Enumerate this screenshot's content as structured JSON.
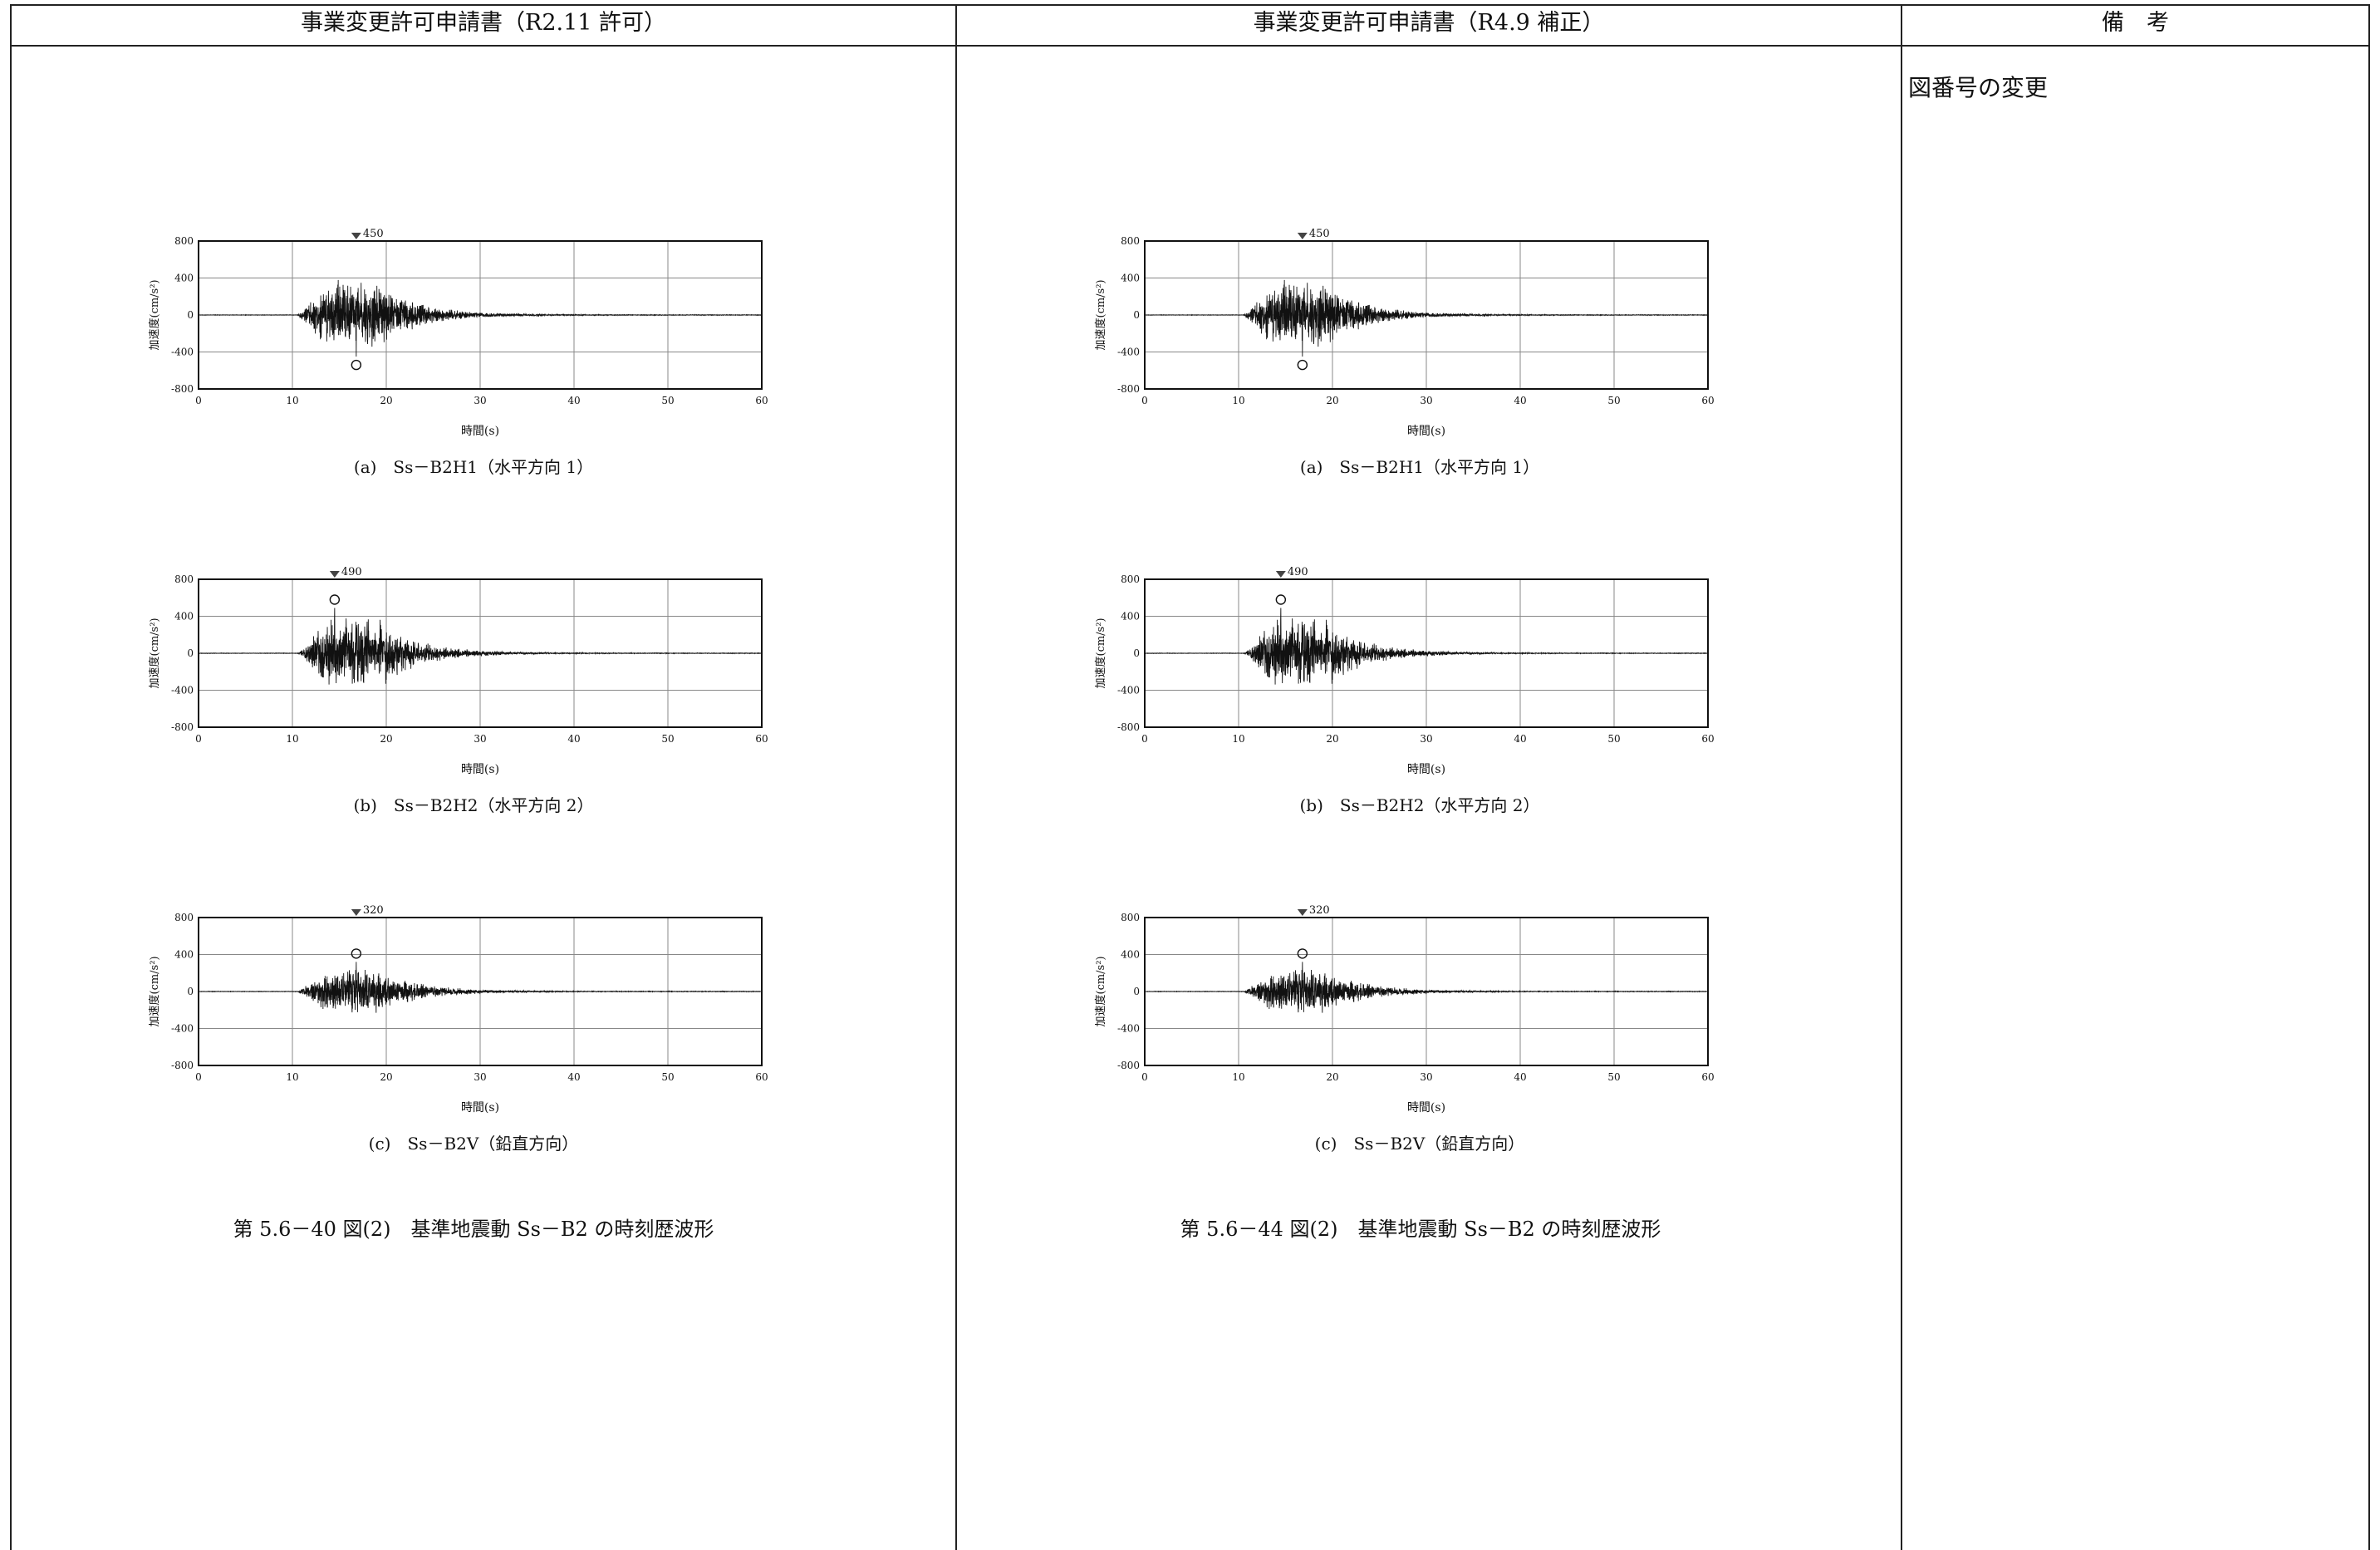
{
  "headers": {
    "col1": "事業変更許可申請書（R2.11 許可）",
    "col2": "事業変更許可申請書（R4.9 補正）",
    "col3": "備　考"
  },
  "remark": "図番号の変更",
  "left_figure_caption": "第 5.6－40 図(2)　基準地震動 Ss－B2 の時刻歴波形",
  "right_figure_caption": "第 5.6－44 図(2)　基準地震動 Ss－B2 の時刻歴波形",
  "chart_common": {
    "ylabel": "加速度(cm/s²)",
    "xlabel": "時間(s)",
    "xticks": [
      "0",
      "10",
      "20",
      "30",
      "40",
      "50",
      "60"
    ],
    "yticks": [
      "800",
      "400",
      "0",
      "-400",
      "-800"
    ]
  },
  "chart_data": [
    {
      "type": "line",
      "caption": "(a)　Ss－B2H1（水平方向 1）",
      "peak_label": "450",
      "peak_time": 16.8,
      "peak_value": -450,
      "xlim": [
        0,
        60
      ],
      "ylim": [
        -800,
        800
      ],
      "xlabel": "時間(s)",
      "ylabel": "加速度(cm/s²)"
    },
    {
      "type": "line",
      "caption": "(b)　Ss－B2H2（水平方向 2）",
      "peak_label": "490",
      "peak_time": 14.5,
      "peak_value": 490,
      "xlim": [
        0,
        60
      ],
      "ylim": [
        -800,
        800
      ],
      "xlabel": "時間(s)",
      "ylabel": "加速度(cm/s²)"
    },
    {
      "type": "line",
      "caption": "(c)　Ss－B2V（鉛直方向）",
      "peak_label": "320",
      "peak_time": 16.8,
      "peak_value": 320,
      "xlim": [
        0,
        60
      ],
      "ylim": [
        -800,
        800
      ],
      "xlabel": "時間(s)",
      "ylabel": "加速度(cm/s²)"
    }
  ]
}
